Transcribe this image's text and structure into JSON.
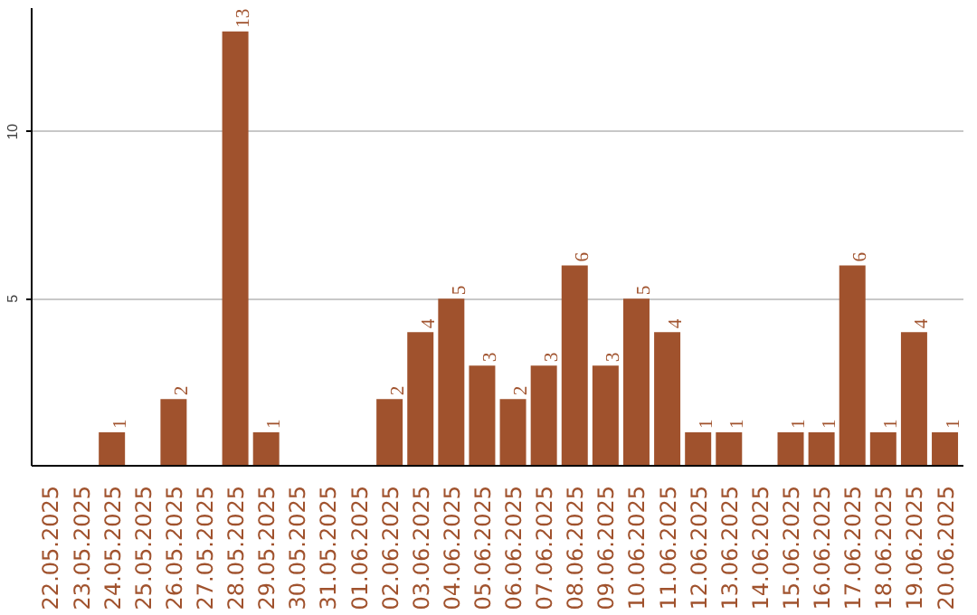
{
  "chart_data": {
    "type": "bar",
    "categories": [
      "22.05.2025",
      "23.05.2025",
      "24.05.2025",
      "25.05.2025",
      "26.05.2025",
      "27.05.2025",
      "28.05.2025",
      "29.05.2025",
      "30.05.2025",
      "31.05.2025",
      "01.06.2025",
      "02.06.2025",
      "03.06.2025",
      "04.06.2025",
      "05.06.2025",
      "06.06.2025",
      "07.06.2025",
      "08.06.2025",
      "09.06.2025",
      "10.06.2025",
      "11.06.2025",
      "12.06.2025",
      "13.06.2025",
      "14.06.2025",
      "15.06.2025",
      "16.06.2025",
      "17.06.2025",
      "18.06.2025",
      "19.06.2025",
      "20.06.2025"
    ],
    "values": [
      0,
      0,
      1,
      0,
      2,
      0,
      13,
      1,
      0,
      0,
      0,
      2,
      4,
      5,
      3,
      2,
      3,
      6,
      3,
      5,
      4,
      1,
      1,
      0,
      1,
      1,
      6,
      1,
      4,
      1
    ],
    "value_labels": [
      null,
      null,
      "1",
      null,
      "2",
      null,
      "13",
      "1",
      null,
      null,
      null,
      "2",
      "4",
      "5",
      "3",
      "2",
      "3",
      "6",
      "3",
      "5",
      "4",
      "1",
      "1",
      null,
      "1",
      "1",
      "6",
      "1",
      "4",
      "1"
    ],
    "color": "#a0522d",
    "ylim": [
      0,
      13.7
    ],
    "yticks": [
      5,
      10
    ],
    "grid": "y"
  }
}
